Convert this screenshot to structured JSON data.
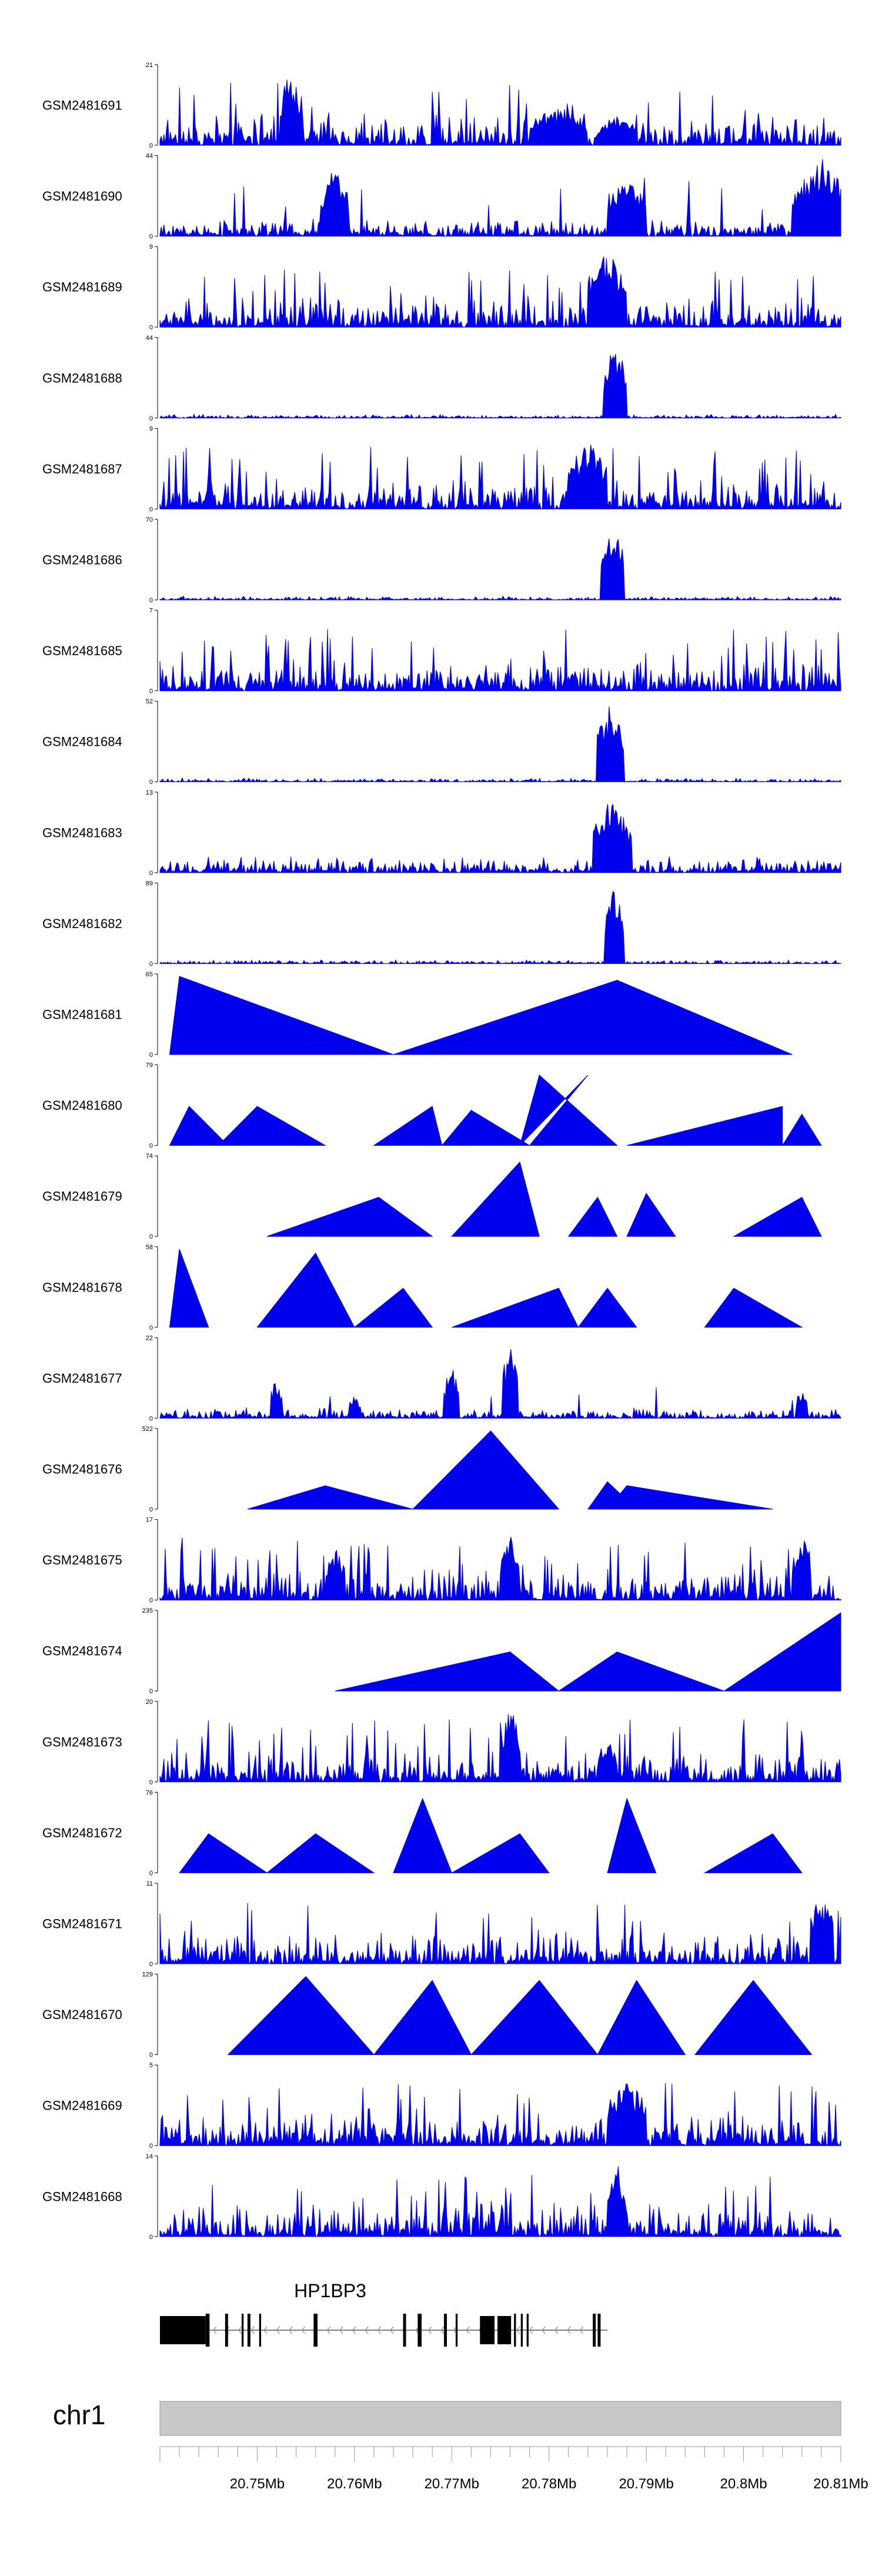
{
  "chart_data": {
    "type": "area",
    "title": "",
    "color": "#0000ee",
    "x_range_mb": [
      20.74,
      20.81
    ],
    "tracks": [
      {
        "name": "GSM2481691",
        "ymax": "21",
        "ymin": "0",
        "style": "dense",
        "peaks": [
          [
            20.7535,
            1.0,
            0.0012
          ],
          [
            20.781,
            0.5,
            0.003
          ],
          [
            20.787,
            0.4,
            0.002
          ]
        ]
      },
      {
        "name": "GSM2481690",
        "ymax": "44",
        "ymin": "0",
        "style": "sparse",
        "peaks": [
          [
            20.758,
            0.9,
            0.0015
          ],
          [
            20.788,
            0.8,
            0.002
          ],
          [
            20.808,
            1.0,
            0.003
          ]
        ]
      },
      {
        "name": "GSM2481689",
        "ymax": "9",
        "ymin": "0",
        "style": "dense",
        "peaks": [
          [
            20.786,
            1.0,
            0.002
          ]
        ]
      },
      {
        "name": "GSM2481688",
        "ymax": "44",
        "ymin": "0",
        "style": "quiet",
        "peaks": [
          [
            20.7868,
            1.0,
            0.0012
          ]
        ]
      },
      {
        "name": "GSM2481687",
        "ymax": "9",
        "ymin": "0",
        "style": "dense",
        "peaks": [
          [
            20.784,
            0.9,
            0.002
          ]
        ]
      },
      {
        "name": "GSM2481686",
        "ymax": "70",
        "ymin": "0",
        "style": "quiet",
        "peaks": [
          [
            20.7865,
            1.0,
            0.0012
          ]
        ]
      },
      {
        "name": "GSM2481685",
        "ymax": "7",
        "ymin": "0",
        "style": "dense",
        "peaks": []
      },
      {
        "name": "GSM2481684",
        "ymax": "52",
        "ymin": "0",
        "style": "quiet",
        "peaks": [
          [
            20.7863,
            1.0,
            0.0014
          ]
        ]
      },
      {
        "name": "GSM2481683",
        "ymax": "13",
        "ymin": "0",
        "style": "mixed",
        "peaks": [
          [
            20.7865,
            1.0,
            0.002
          ]
        ]
      },
      {
        "name": "GSM2481682",
        "ymax": "89",
        "ymin": "0",
        "style": "quiet",
        "peaks": [
          [
            20.7867,
            1.0,
            0.001
          ]
        ]
      },
      {
        "name": "GSM2481681",
        "ymax": "65",
        "ymin": "0",
        "style": "triangles",
        "tri": [
          [
            20.741,
            20.742,
            20.764,
            1.0
          ],
          [
            20.764,
            20.787,
            20.805,
            0.95
          ]
        ]
      },
      {
        "name": "GSM2481680",
        "ymax": "79",
        "ymin": "0",
        "style": "triangles",
        "tri": [
          [
            20.741,
            20.743,
            20.747,
            0.5
          ],
          [
            20.746,
            20.75,
            20.757,
            0.5
          ],
          [
            20.762,
            20.768,
            20.769,
            0.5
          ],
          [
            20.769,
            20.772,
            20.778,
            0.45
          ],
          [
            20.778,
            20.784,
            20.777,
            0.9
          ],
          [
            20.777,
            20.779,
            20.787,
            0.9
          ],
          [
            20.788,
            20.804,
            20.804,
            0.5
          ],
          [
            20.804,
            20.806,
            20.808,
            0.4
          ]
        ]
      },
      {
        "name": "GSM2481679",
        "ymax": "74",
        "ymin": "0",
        "style": "triangles",
        "tri": [
          [
            20.751,
            20.7625,
            20.768,
            0.5
          ],
          [
            20.77,
            20.777,
            20.779,
            0.95
          ],
          [
            20.782,
            20.785,
            20.787,
            0.5
          ],
          [
            20.788,
            20.79,
            20.793,
            0.55
          ],
          [
            20.799,
            20.806,
            20.808,
            0.5
          ]
        ]
      },
      {
        "name": "GSM2481678",
        "ymax": "58",
        "ymin": "0",
        "style": "triangles",
        "tri": [
          [
            20.741,
            20.742,
            20.745,
            1.0
          ],
          [
            20.75,
            20.756,
            20.76,
            0.95
          ],
          [
            20.76,
            20.765,
            20.768,
            0.5
          ],
          [
            20.77,
            20.781,
            20.783,
            0.5
          ],
          [
            20.783,
            20.786,
            20.789,
            0.5
          ],
          [
            20.796,
            20.799,
            20.806,
            0.5
          ]
        ]
      },
      {
        "name": "GSM2481677",
        "ymax": "22",
        "ymin": "0",
        "style": "sparse-dense",
        "peaks": [
          [
            20.752,
            0.55,
            0.0006
          ],
          [
            20.76,
            0.3,
            0.0006
          ],
          [
            20.77,
            0.7,
            0.0008
          ],
          [
            20.776,
            1.0,
            0.0008
          ],
          [
            20.806,
            0.4,
            0.0006
          ]
        ]
      },
      {
        "name": "GSM2481676",
        "ymax": "522",
        "ymin": "0",
        "style": "triangles",
        "tri": [
          [
            20.749,
            20.757,
            20.766,
            0.3
          ],
          [
            20.766,
            20.774,
            20.781,
            1.0
          ],
          [
            20.784,
            20.786,
            20.789,
            0.35
          ],
          [
            20.786,
            20.788,
            20.803,
            0.3
          ]
        ]
      },
      {
        "name": "GSM2481675",
        "ymax": "17",
        "ymin": "0",
        "style": "dense",
        "peaks": [
          [
            20.758,
            0.7,
            0.001
          ],
          [
            20.776,
            0.95,
            0.001
          ],
          [
            20.806,
            0.9,
            0.001
          ]
        ]
      },
      {
        "name": "GSM2481674",
        "ymax": "235",
        "ymin": "0",
        "style": "triangles",
        "tri": [
          [
            20.758,
            20.776,
            20.781,
            0.5
          ],
          [
            20.781,
            20.787,
            20.798,
            0.5
          ],
          [
            20.798,
            20.81,
            20.81,
            1.0
          ]
        ]
      },
      {
        "name": "GSM2481673",
        "ymax": "20",
        "ymin": "0",
        "style": "dense",
        "peaks": [
          [
            20.776,
            1.0,
            0.001
          ],
          [
            20.786,
            0.6,
            0.001
          ]
        ]
      },
      {
        "name": "GSM2481672",
        "ymax": "76",
        "ymin": "0",
        "style": "triangles",
        "tri": [
          [
            20.742,
            20.745,
            20.751,
            0.5
          ],
          [
            20.751,
            20.756,
            20.762,
            0.5
          ],
          [
            20.764,
            20.767,
            20.77,
            0.95
          ],
          [
            20.77,
            20.777,
            20.78,
            0.5
          ],
          [
            20.786,
            20.788,
            20.791,
            0.95
          ],
          [
            20.796,
            20.803,
            20.806,
            0.5
          ]
        ]
      },
      {
        "name": "GSM2481671",
        "ymax": "11",
        "ymin": "0",
        "style": "dense",
        "peaks": [
          [
            20.808,
            0.95,
            0.0012
          ]
        ]
      },
      {
        "name": "GSM2481670",
        "ymax": "129",
        "ymin": "0",
        "style": "triangles",
        "tri": [
          [
            20.747,
            20.755,
            20.762,
            1.0
          ],
          [
            20.762,
            20.768,
            20.772,
            0.95
          ],
          [
            20.772,
            20.779,
            20.785,
            0.95
          ],
          [
            20.785,
            20.789,
            20.794,
            0.95
          ],
          [
            20.795,
            20.801,
            20.807,
            0.95
          ]
        ]
      },
      {
        "name": "GSM2481669",
        "ymax": "5",
        "ymin": "0",
        "style": "dense",
        "peaks": [
          [
            20.788,
            0.9,
            0.002
          ]
        ]
      },
      {
        "name": "GSM2481668",
        "ymax": "14",
        "ymin": "0",
        "style": "dense",
        "peaks": [
          [
            20.787,
            0.95,
            0.001
          ]
        ]
      }
    ],
    "gene": {
      "name": "HP1BP3",
      "strand": "-",
      "start_mb": 20.74,
      "end_mb": 20.786,
      "exons": [
        [
          20.74,
          20.7447
        ],
        [
          20.7447,
          20.7451
        ],
        [
          20.7467,
          20.747
        ],
        [
          20.7484,
          20.7486
        ],
        [
          20.749,
          20.7493
        ],
        [
          20.7502,
          20.7504
        ],
        [
          20.7558,
          20.7562
        ],
        [
          20.765,
          20.7653
        ],
        [
          20.7665,
          20.7669
        ],
        [
          20.7692,
          20.7695
        ],
        [
          20.7704,
          20.7706
        ],
        [
          20.7729,
          20.7744
        ],
        [
          20.7747,
          20.7761
        ],
        [
          20.7764,
          20.7766
        ],
        [
          20.7771,
          20.7773
        ],
        [
          20.7777,
          20.7779
        ],
        [
          20.7845,
          20.7848
        ],
        [
          20.785,
          20.7853
        ]
      ]
    },
    "chromosome": "chr1",
    "x_ticks": [
      "20.75Mb",
      "20.76Mb",
      "20.77Mb",
      "20.78Mb",
      "20.79Mb",
      "20.8Mb",
      "20.81Mb"
    ],
    "x_tick_values": [
      20.75,
      20.76,
      20.77,
      20.78,
      20.79,
      20.8,
      20.81
    ]
  }
}
